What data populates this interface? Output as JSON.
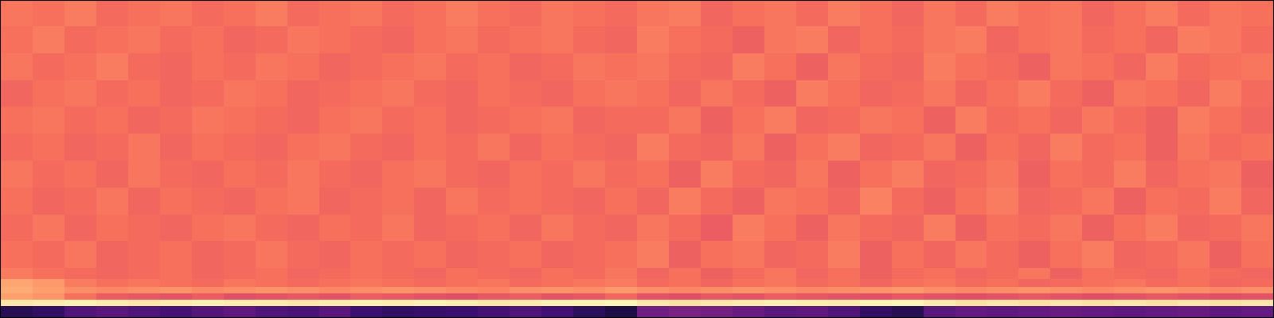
{
  "chart_data": {
    "type": "heatmap",
    "color": "magma",
    "tick_labels": false,
    "xlim": [
      0,
      40
    ],
    "ylim": [
      0,
      100
    ],
    "zlim": [
      -80,
      0
    ],
    "x": [
      0,
      1,
      2,
      3,
      4,
      5,
      6,
      7,
      8,
      9,
      10,
      11,
      12,
      13,
      14,
      15,
      16,
      17,
      18,
      19,
      20,
      21,
      22,
      23,
      24,
      25,
      26,
      27,
      28,
      29,
      30,
      31,
      32,
      33,
      34,
      35,
      36,
      37,
      38,
      39,
      40
    ],
    "y": [
      0,
      3.5,
      5.5,
      7.5,
      9.5,
      12,
      15.5,
      24,
      32.5,
      41,
      49.5,
      58,
      66.5,
      75,
      83.5,
      92,
      100
    ],
    "cells": [
      [
        -68,
        -66,
        -60,
        -58,
        -60,
        -62,
        -59,
        -57,
        -60,
        -61,
        -58,
        -64,
        -66,
        -65,
        -64,
        -62,
        -60,
        -63,
        -67,
        -70,
        -54,
        -52,
        -53,
        -55,
        -58,
        -57,
        -60,
        -66,
        -68,
        -58,
        -56,
        -57,
        -56,
        -55,
        -56,
        -57,
        -56,
        -55,
        -57,
        -56
      ],
      [
        -4,
        -3,
        -2,
        -3,
        -4,
        -3,
        -2,
        -3,
        -3,
        -4,
        -3,
        -2,
        -3,
        -2,
        -3,
        -4,
        -3,
        -2,
        -2,
        -1,
        -4,
        -5,
        -4,
        -3,
        -2,
        -3,
        -3,
        -2,
        -1,
        -3,
        -5,
        -4,
        -5,
        -4,
        -5,
        -4,
        -5,
        -4,
        -5,
        -4
      ],
      [
        -16,
        -18,
        -24,
        -28,
        -29,
        -30,
        -28,
        -31,
        -30,
        -29,
        -30,
        -28,
        -29,
        -30,
        -31,
        -29,
        -28,
        -30,
        -29,
        -26,
        -30,
        -31,
        -29,
        -30,
        -28,
        -29,
        -30,
        -31,
        -29,
        -30,
        -31,
        -30,
        -29,
        -30,
        -31,
        -30,
        -29,
        -30,
        -31,
        -30
      ],
      [
        -14,
        -16,
        -19,
        -20,
        -19,
        -18,
        -20,
        -19,
        -18,
        -19,
        -20,
        -19,
        -18,
        -19,
        -20,
        -21,
        -19,
        -18,
        -19,
        -17,
        -19,
        -20,
        -19,
        -18,
        -19,
        -20,
        -19,
        -18,
        -17,
        -19,
        -20,
        -19,
        -18,
        -19,
        -20,
        -19,
        -18,
        -19,
        -20,
        -19
      ],
      [
        -15,
        -17,
        -22,
        -24,
        -23,
        -24,
        -25,
        -23,
        -24,
        -25,
        -24,
        -23,
        -24,
        -25,
        -24,
        -23,
        -25,
        -24,
        -23,
        -22,
        -25,
        -24,
        -26,
        -24,
        -23,
        -25,
        -24,
        -26,
        -24,
        -23,
        -25,
        -24,
        -26,
        -25,
        -24,
        -23,
        -25,
        -24,
        -26,
        -25
      ],
      [
        -22,
        -24,
        -25,
        -26,
        -25,
        -24,
        -26,
        -25,
        -24,
        -26,
        -25,
        -24,
        -25,
        -26,
        -24,
        -25,
        -26,
        -24,
        -25,
        -23,
        -26,
        -24,
        -27,
        -25,
        -23,
        -26,
        -24,
        -27,
        -25,
        -24,
        -26,
        -25,
        -23,
        -27,
        -24,
        -25,
        -26,
        -24,
        -25,
        -26
      ],
      [
        -24,
        -25,
        -23,
        -26,
        -25,
        -24,
        -26,
        -25,
        -23,
        -25,
        -26,
        -24,
        -25,
        -24,
        -26,
        -25,
        -24,
        -26,
        -25,
        -24,
        -22,
        -27,
        -24,
        -23,
        -26,
        -25,
        -22,
        -27,
        -24,
        -26,
        -23,
        -25,
        -27,
        -24,
        -22,
        -26,
        -25,
        -23,
        -27,
        -24
      ],
      [
        -25,
        -23,
        -26,
        -24,
        -25,
        -26,
        -24,
        -23,
        -25,
        -26,
        -24,
        -25,
        -23,
        -26,
        -25,
        -24,
        -26,
        -23,
        -25,
        -26,
        -23,
        -25,
        -28,
        -22,
        -24,
        -27,
        -23,
        -25,
        -26,
        -22,
        -27,
        -24,
        -25,
        -23,
        -27,
        -24,
        -22,
        -26,
        -25,
        -23
      ],
      [
        -24,
        -26,
        -25,
        -23,
        -26,
        -24,
        -25,
        -26,
        -24,
        -23,
        -26,
        -25,
        -24,
        -26,
        -23,
        -25,
        -24,
        -25,
        -26,
        -24,
        -26,
        -22,
        -25,
        -27,
        -23,
        -24,
        -26,
        -21,
        -25,
        -27,
        -24,
        -22,
        -26,
        -25,
        -23,
        -27,
        -24,
        -25,
        -22,
        -26
      ],
      [
        -23,
        -25,
        -24,
        -26,
        -23,
        -25,
        -26,
        -24,
        -25,
        -23,
        -25,
        -26,
        -24,
        -23,
        -25,
        -26,
        -24,
        -25,
        -23,
        -25,
        -24,
        -27,
        -22,
        -25,
        -26,
        -23,
        -27,
        -24,
        -22,
        -26,
        -25,
        -23,
        -27,
        -24,
        -25,
        -22,
        -26,
        -24,
        -23,
        -27
      ],
      [
        -25,
        -24,
        -26,
        -25,
        -23,
        -26,
        -24,
        -25,
        -26,
        -24,
        -23,
        -25,
        -26,
        -24,
        -25,
        -23,
        -26,
        -24,
        -25,
        -26,
        -22,
        -25,
        -26,
        -23,
        -27,
        -24,
        -22,
        -26,
        -25,
        -23,
        -27,
        -24,
        -26,
        -22,
        -25,
        -24,
        -27,
        -23,
        -25,
        -24
      ],
      [
        -24,
        -23,
        -25,
        -24,
        -26,
        -25,
        -23,
        -24,
        -25,
        -26,
        -24,
        -23,
        -25,
        -24,
        -26,
        -25,
        -24,
        -23,
        -26,
        -25,
        -25,
        -23,
        -27,
        -24,
        -22,
        -26,
        -25,
        -23,
        -24,
        -27,
        -22,
        -25,
        -24,
        -26,
        -23,
        -25,
        -27,
        -22,
        -24,
        -26
      ],
      [
        -26,
        -24,
        -23,
        -25,
        -24,
        -26,
        -25,
        -23,
        -24,
        -26,
        -25,
        -24,
        -23,
        -25,
        -26,
        -24,
        -25,
        -26,
        -24,
        -23,
        -24,
        -26,
        -23,
        -25,
        -27,
        -22,
        -24,
        -26,
        -25,
        -23,
        -26,
        -24,
        -22,
        -25,
        -27,
        -23,
        -24,
        -26,
        -22,
        -25
      ],
      [
        -23,
        -25,
        -24,
        -22,
        -25,
        -26,
        -24,
        -25,
        -23,
        -24,
        -26,
        -25,
        -24,
        -23,
        -25,
        -24,
        -26,
        -25,
        -23,
        -24,
        -23,
        -25,
        -26,
        -22,
        -24,
        -27,
        -23,
        -25,
        -26,
        -22,
        -24,
        -25,
        -27,
        -23,
        -24,
        -26,
        -22,
        -25,
        -24,
        -23
      ],
      [
        -24,
        -22,
        -25,
        -24,
        -23,
        -25,
        -24,
        -26,
        -25,
        -23,
        -24,
        -25,
        -26,
        -24,
        -23,
        -25,
        -24,
        -23,
        -25,
        -26,
        -22,
        -24,
        -25,
        -27,
        -23,
        -22,
        -26,
        -24,
        -25,
        -23,
        -22,
        -26,
        -24,
        -23,
        -25,
        -24,
        -26,
        -22,
        -23,
        -25
      ],
      [
        -23,
        -24,
        -22,
        -25,
        -24,
        -23,
        -25,
        -24,
        -22,
        -25,
        -24,
        -23,
        -25,
        -24,
        -22,
        -24,
        -25,
        -23,
        -24,
        -25,
        -23,
        -22,
        -26,
        -24,
        -23,
        -25,
        -22,
        -24,
        -26,
        -23,
        -25,
        -22,
        -24,
        -23,
        -26,
        -24,
        -22,
        -25,
        -23,
        -24
      ]
    ]
  }
}
